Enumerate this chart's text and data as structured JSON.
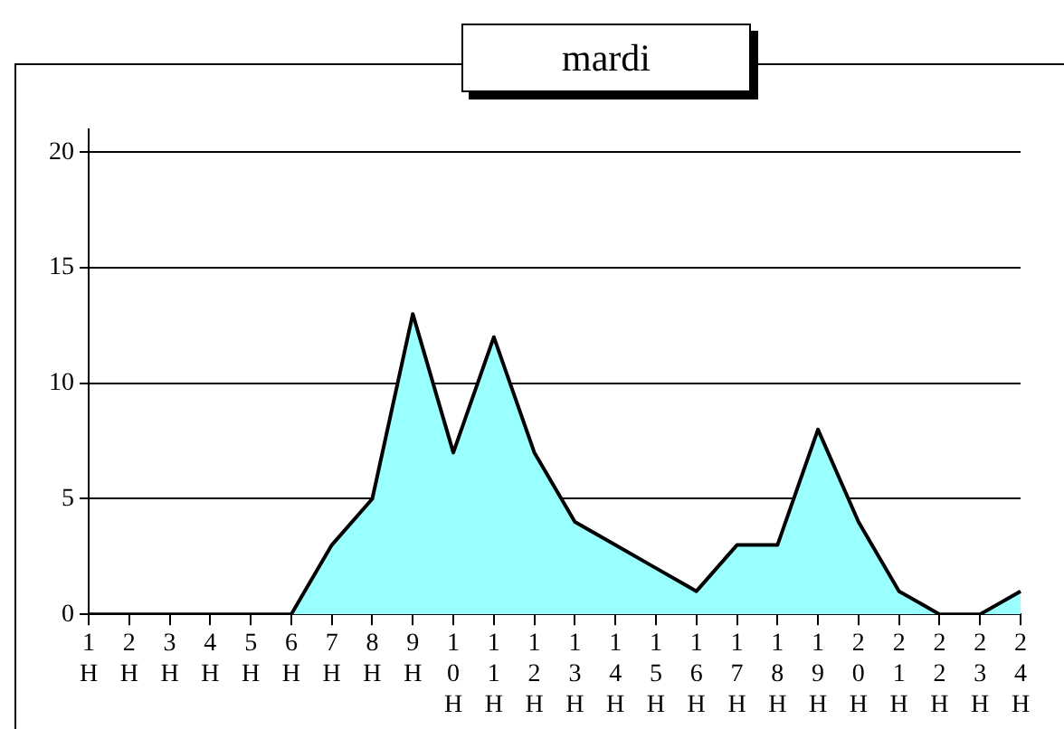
{
  "chart_data": {
    "type": "area",
    "title": "mardi",
    "categories": [
      "1H",
      "2H",
      "3H",
      "4H",
      "5H",
      "6H",
      "7H",
      "8H",
      "9H",
      "10H",
      "11H",
      "12H",
      "13H",
      "14H",
      "15H",
      "16H",
      "17H",
      "18H",
      "19H",
      "20H",
      "21H",
      "22H",
      "23H",
      "24H"
    ],
    "series": [
      {
        "color": "#99ffff",
        "values": [
          0,
          0,
          0,
          0,
          0,
          0,
          3,
          5,
          13,
          7,
          12,
          7,
          4,
          3,
          2,
          1,
          3,
          3,
          8,
          4,
          1,
          0,
          0,
          1
        ]
      }
    ],
    "ylim": [
      0,
      21
    ],
    "yticks": [
      0,
      5,
      10,
      15,
      20
    ],
    "grid": "y",
    "legend": false,
    "marker": "none",
    "line_style": "solid"
  }
}
